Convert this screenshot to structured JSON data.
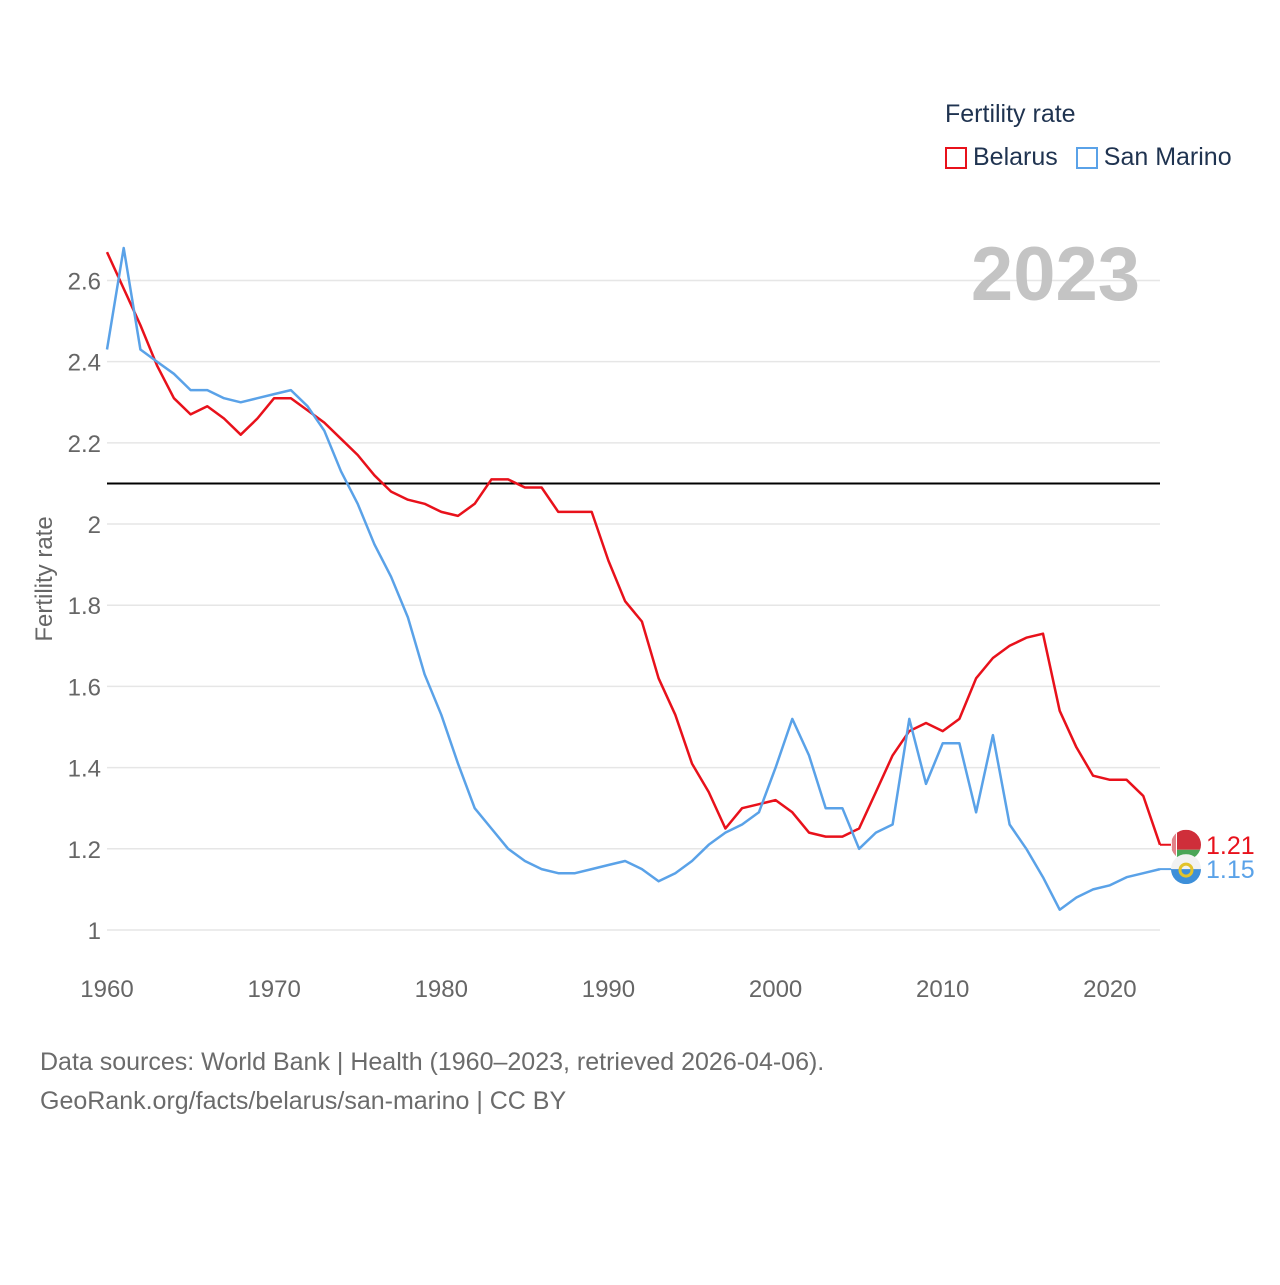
{
  "legend": {
    "title": "Fertility rate",
    "entries": [
      {
        "name": "Belarus",
        "color": "#e8111b"
      },
      {
        "name": "San Marino",
        "color": "#5aa2e8"
      }
    ]
  },
  "year_label": "2023",
  "source": {
    "line1": "Data sources: World Bank | Health (1960–2023, retrieved 2026-04-06).",
    "line2": "GeoRank.org/facts/belarus/san-marino | CC BY"
  },
  "chart_data": {
    "type": "line",
    "title": "Fertility rate",
    "xlabel": "",
    "ylabel": "Fertility rate",
    "xlim": [
      1960,
      2023
    ],
    "ylim": [
      0.96,
      2.68
    ],
    "x_ticks": [
      1960,
      1970,
      1980,
      1990,
      2000,
      2010,
      2020
    ],
    "y_ticks": [
      1,
      1.2,
      1.4,
      1.6,
      1.8,
      2,
      2.2,
      2.4,
      2.6
    ],
    "y_tick_labels": [
      "1",
      "1.2",
      "1.4",
      "1.6",
      "1.8",
      "2",
      "2.2",
      "2.4",
      "2.6"
    ],
    "x_tick_labels": [
      "1960",
      "1970",
      "1980",
      "1990",
      "2000",
      "2010",
      "2020"
    ],
    "reference_line": {
      "y": 2.1,
      "color": "#000000"
    },
    "grid": true,
    "legend_position": "top-right",
    "x": [
      1960,
      1961,
      1962,
      1963,
      1964,
      1965,
      1966,
      1967,
      1968,
      1969,
      1970,
      1971,
      1972,
      1973,
      1974,
      1975,
      1976,
      1977,
      1978,
      1979,
      1980,
      1981,
      1982,
      1983,
      1984,
      1985,
      1986,
      1987,
      1988,
      1989,
      1990,
      1991,
      1992,
      1993,
      1994,
      1995,
      1996,
      1997,
      1998,
      1999,
      2000,
      2001,
      2002,
      2003,
      2004,
      2005,
      2006,
      2007,
      2008,
      2009,
      2010,
      2011,
      2012,
      2013,
      2014,
      2015,
      2016,
      2017,
      2018,
      2019,
      2020,
      2021,
      2022,
      2023
    ],
    "series": [
      {
        "name": "Belarus",
        "color": "#e8111b",
        "end_label": "1.21",
        "values": [
          2.67,
          2.58,
          2.49,
          2.39,
          2.31,
          2.27,
          2.29,
          2.26,
          2.22,
          2.26,
          2.31,
          2.31,
          2.28,
          2.25,
          2.21,
          2.17,
          2.12,
          2.08,
          2.06,
          2.05,
          2.03,
          2.02,
          2.05,
          2.11,
          2.11,
          2.09,
          2.09,
          2.03,
          2.03,
          2.03,
          1.91,
          1.81,
          1.76,
          1.62,
          1.53,
          1.41,
          1.34,
          1.25,
          1.3,
          1.31,
          1.32,
          1.29,
          1.24,
          1.23,
          1.23,
          1.25,
          1.34,
          1.43,
          1.49,
          1.51,
          1.49,
          1.52,
          1.62,
          1.67,
          1.7,
          1.72,
          1.73,
          1.54,
          1.45,
          1.38,
          1.37,
          1.37,
          1.33,
          1.21
        ]
      },
      {
        "name": "San Marino",
        "color": "#5aa2e8",
        "end_label": "1.15",
        "values": [
          2.43,
          2.68,
          2.43,
          2.4,
          2.37,
          2.33,
          2.33,
          2.31,
          2.3,
          2.31,
          2.32,
          2.33,
          2.29,
          2.23,
          2.13,
          2.05,
          1.95,
          1.87,
          1.77,
          1.63,
          1.53,
          1.41,
          1.3,
          1.25,
          1.2,
          1.17,
          1.15,
          1.14,
          1.14,
          1.15,
          1.16,
          1.17,
          1.15,
          1.12,
          1.14,
          1.17,
          1.21,
          1.24,
          1.26,
          1.29,
          1.4,
          1.52,
          1.43,
          1.3,
          1.3,
          1.2,
          1.24,
          1.26,
          1.52,
          1.36,
          1.46,
          1.46,
          1.29,
          1.48,
          1.26,
          1.2,
          1.13,
          1.05,
          1.08,
          1.1,
          1.11,
          1.13,
          1.14,
          1.15
        ]
      }
    ]
  }
}
